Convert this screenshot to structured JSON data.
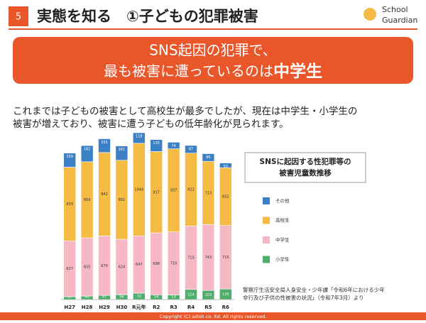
{
  "header": {
    "page": "5",
    "title": "実態を知る　①子どもの犯罪被害",
    "logo_line1": "School",
    "logo_line2": "Guardian"
  },
  "banner": {
    "line1": "SNS起因の犯罪で、",
    "line2": "最も被害に遭っているのは",
    "emphasis": "中学生"
  },
  "body": {
    "line1": "これまでは子どもの被害として高校生が最多でしたが、現在は中学生・小学生の",
    "line2": "被害が増えており、被害に遭う子どもの低年齢化が見られます。"
  },
  "chart_data": {
    "type": "stacked_bar",
    "title_line1": "SNSに起因する性犯罪等の",
    "title_line2": "被害児童数推移",
    "categories": [
      "H27",
      "H28",
      "H29",
      "H30",
      "R元年",
      "R2",
      "R3",
      "R4",
      "R5",
      "R6"
    ],
    "series": [
      {
        "name": "小学生",
        "color": "#4cae6a",
        "values": [
          33,
          40,
          47,
          56,
          72,
          54,
          53,
          114,
          103,
          120
        ]
      },
      {
        "name": "中学生",
        "color": "#f5b8c4",
        "values": [
          627,
          655,
          670,
          624,
          647,
          698,
          710,
          715,
          743,
          715
        ]
      },
      {
        "name": "高校生",
        "color": "#f5bb45",
        "values": [
          833,
          859,
          941,
          891,
          1044,
          917,
          937,
          822,
          713,
          652
        ]
      },
      {
        "name": "その他",
        "color": "#3b7fc4",
        "values": [
          159,
          182,
          155,
          161,
          118,
          135,
          74,
          87,
          86,
          53
        ]
      }
    ],
    "source_line1": "警察庁生活安全局人身安全・少年課「令和6年における少年",
    "source_line2": "非行及び子供の性被害の状況」（令和7年3月）より"
  },
  "footer": {
    "copyright": "Copyright (C) adish co. ltd. All rights reserved."
  }
}
